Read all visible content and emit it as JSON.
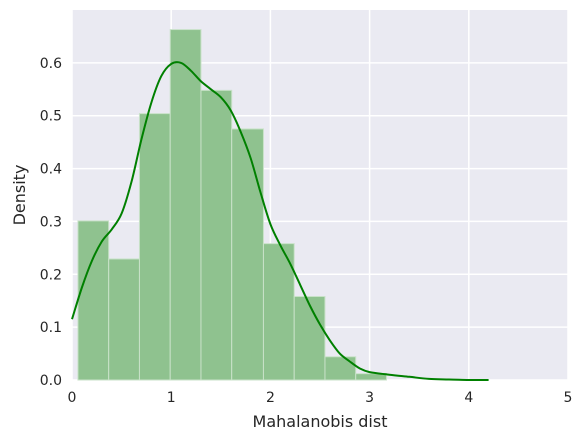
{
  "chart_data": {
    "type": "bar",
    "xlabel": "Mahalanobis dist",
    "ylabel": "Density",
    "xlim": [
      0,
      5
    ],
    "ylim": [
      0,
      0.7
    ],
    "x_ticks": [
      0,
      1,
      2,
      3,
      4,
      5
    ],
    "y_ticks": [
      0.0,
      0.1,
      0.2,
      0.3,
      0.4,
      0.5,
      0.6
    ],
    "grid": true,
    "legend": "none",
    "colors": {
      "background": "#eaeaf2",
      "grid": "#ffffff",
      "bar_fill": "#8fc28f",
      "bar_edge": "#c9e2c9",
      "kde": "#008000"
    },
    "histogram": {
      "bin_edges": [
        0.06,
        0.37,
        0.68,
        0.99,
        1.3,
        1.61,
        1.93,
        2.24,
        2.55,
        2.86,
        3.17
      ],
      "densities": [
        0.301,
        0.229,
        0.504,
        0.663,
        0.548,
        0.475,
        0.258,
        0.158,
        0.044,
        0.012
      ]
    },
    "kde": {
      "x": [
        0.0,
        0.1,
        0.2,
        0.3,
        0.4,
        0.5,
        0.6,
        0.7,
        0.8,
        0.9,
        1.0,
        1.1,
        1.2,
        1.3,
        1.4,
        1.5,
        1.6,
        1.7,
        1.8,
        1.9,
        2.0,
        2.1,
        2.2,
        2.3,
        2.4,
        2.5,
        2.6,
        2.7,
        2.8,
        2.9,
        3.0,
        3.2,
        3.4,
        3.6,
        3.8,
        4.0,
        4.2
      ],
      "y": [
        0.115,
        0.175,
        0.225,
        0.262,
        0.285,
        0.315,
        0.375,
        0.455,
        0.525,
        0.575,
        0.598,
        0.6,
        0.585,
        0.565,
        0.55,
        0.535,
        0.51,
        0.47,
        0.42,
        0.355,
        0.295,
        0.255,
        0.22,
        0.18,
        0.14,
        0.105,
        0.075,
        0.05,
        0.035,
        0.022,
        0.015,
        0.01,
        0.006,
        0.002,
        0.001,
        0.0,
        0.0
      ]
    }
  }
}
